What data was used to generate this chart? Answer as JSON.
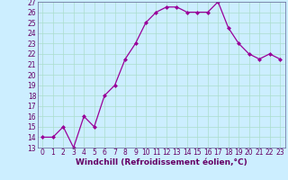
{
  "x": [
    0,
    1,
    2,
    3,
    4,
    5,
    6,
    7,
    8,
    9,
    10,
    11,
    12,
    13,
    14,
    15,
    16,
    17,
    18,
    19,
    20,
    21,
    22,
    23
  ],
  "y": [
    14,
    14,
    15,
    13,
    16,
    15,
    18,
    19,
    21.5,
    23,
    25,
    26,
    26.5,
    26.5,
    26,
    26,
    26,
    27,
    24.5,
    23,
    22,
    21.5,
    22,
    21.5
  ],
  "line_color": "#990099",
  "marker": "D",
  "marker_size": 2.0,
  "bg_color": "#cceeff",
  "grid_color": "#aaddcc",
  "xlabel": "Windchill (Refroidissement éolien,°C)",
  "xlim": [
    -0.5,
    23.5
  ],
  "ylim": [
    13,
    27
  ],
  "yticks": [
    13,
    14,
    15,
    16,
    17,
    18,
    19,
    20,
    21,
    22,
    23,
    24,
    25,
    26,
    27
  ],
  "xticks": [
    0,
    1,
    2,
    3,
    4,
    5,
    6,
    7,
    8,
    9,
    10,
    11,
    12,
    13,
    14,
    15,
    16,
    17,
    18,
    19,
    20,
    21,
    22,
    23
  ],
  "tick_fontsize": 5.5,
  "xlabel_fontsize": 6.5,
  "line_width": 0.9
}
